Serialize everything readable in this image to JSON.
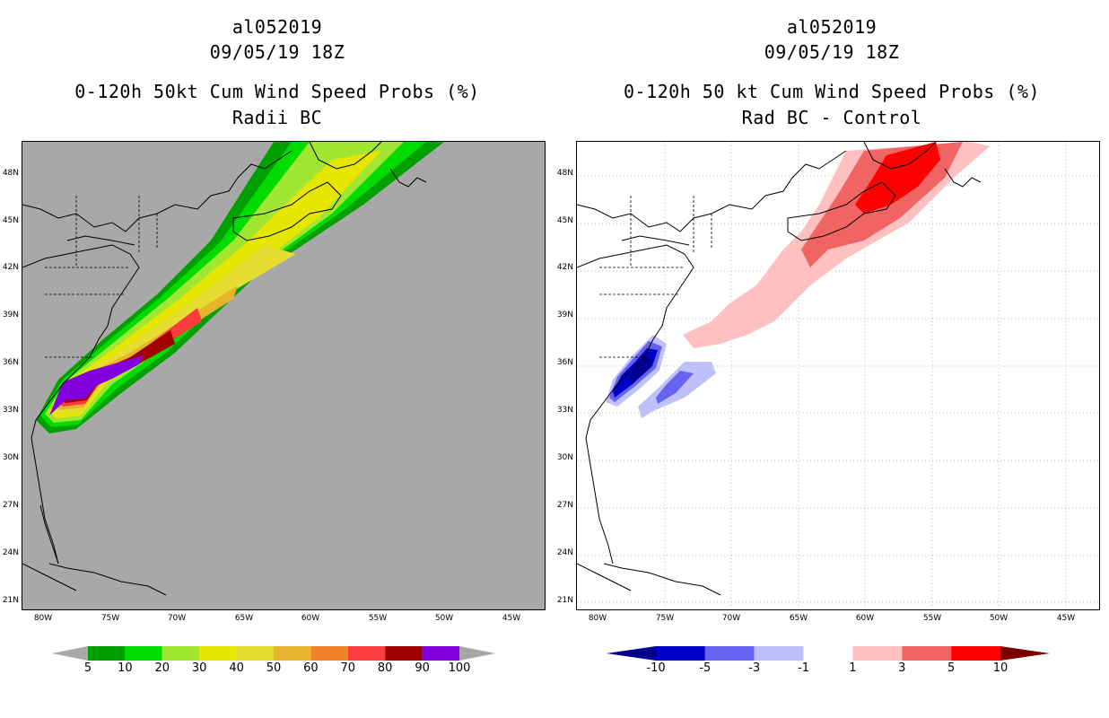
{
  "left": {
    "storm_id": "al052019",
    "datetime": "09/05/19 18Z",
    "title": "0-120h 50kt Cum Wind Speed Probs (%)",
    "subtitle": "Radii BC",
    "background": "#a8a8a8",
    "colorbar": {
      "labels": [
        "5",
        "10",
        "20",
        "30",
        "40",
        "50",
        "60",
        "70",
        "80",
        "90",
        "100"
      ],
      "colors": [
        "#00a000",
        "#00dc00",
        "#a0e632",
        "#e6e600",
        "#e6dc32",
        "#e6b42d",
        "#f08228",
        "#fa3c3c",
        "#a00000",
        "#8200dc"
      ],
      "arrow_color": "#a8a8a8"
    }
  },
  "right": {
    "storm_id": "al052019",
    "datetime": "09/05/19 18Z",
    "title": "0-120h 50 kt Cum Wind Speed Probs (%)",
    "subtitle": "Rad BC - Control",
    "background": "#ffffff",
    "colorbar": {
      "labels": [
        "-10",
        "-5",
        "-3",
        "-1",
        "1",
        "3",
        "5",
        "10"
      ],
      "colors": [
        "#0000c8",
        "#6464f0",
        "#c0c0f8",
        "#ffffff",
        "#ffc0c0",
        "#f06464",
        "#ff0000"
      ],
      "low_arrow": "#00008c",
      "high_arrow": "#780000"
    }
  },
  "axes": {
    "lat_labels": [
      "48N",
      "45N",
      "42N",
      "39N",
      "36N",
      "33N",
      "30N",
      "27N",
      "24N",
      "21N"
    ],
    "lon_labels": [
      "80W",
      "75W",
      "70W",
      "65W",
      "60W",
      "55W",
      "50W",
      "45W"
    ]
  }
}
